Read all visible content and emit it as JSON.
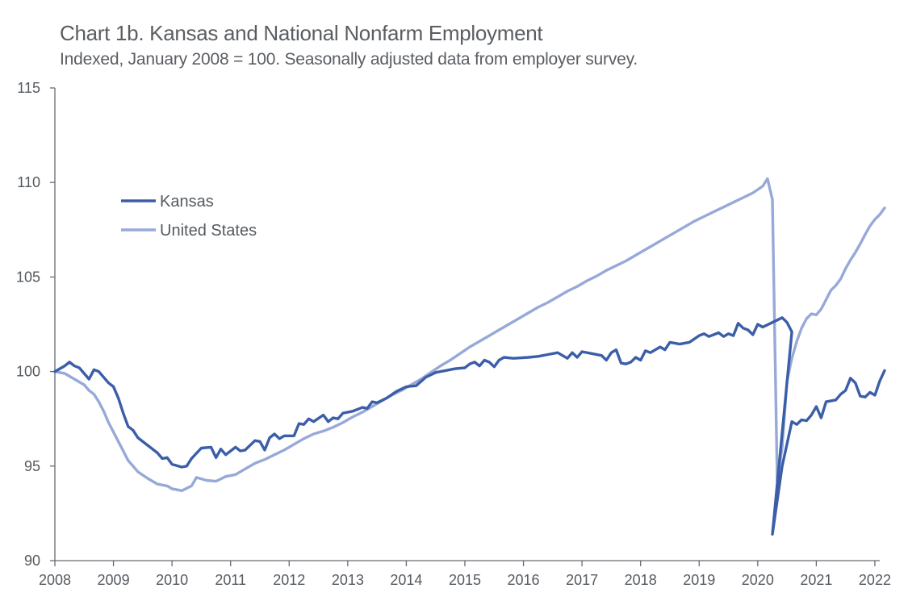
{
  "title": "Chart 1b. Kansas and National Nonfarm Employment",
  "subtitle": "Indexed, January 2008 = 100. Seasonally adjusted data from employer survey.",
  "colors": {
    "kansas": "#3b5ea8",
    "united_states": "#97a9d8",
    "axis": "#666b72"
  },
  "chart_data": {
    "type": "line",
    "title": "Chart 1b. Kansas and National Nonfarm Employment",
    "subtitle": "Indexed, January 2008 = 100. Seasonally adjusted data from employer survey.",
    "xlabel": "",
    "ylabel": "",
    "ylim": [
      90,
      115
    ],
    "yticks": [
      90,
      95,
      100,
      105,
      110,
      115
    ],
    "xticks": [
      "2008",
      "2009",
      "2010",
      "2011",
      "2012",
      "2013",
      "2014",
      "2015",
      "2016",
      "2017",
      "2018",
      "2019",
      "2020",
      "2021",
      "2022"
    ],
    "xlim": [
      "2008-01",
      "2022-02"
    ],
    "grid": false,
    "legend_position": "upper-left",
    "series": [
      {
        "name": "Kansas",
        "color": "#3b5ea8",
        "points": [
          [
            "2008-01",
            100.0
          ],
          [
            "2008-03",
            100.3
          ],
          [
            "2008-04",
            100.5
          ],
          [
            "2008-05",
            100.3
          ],
          [
            "2008-06",
            100.2
          ],
          [
            "2008-08",
            99.6
          ],
          [
            "2008-09",
            100.1
          ],
          [
            "2008-10",
            100.0
          ],
          [
            "2008-12",
            99.4
          ],
          [
            "2009-01",
            99.2
          ],
          [
            "2009-02",
            98.6
          ],
          [
            "2009-03",
            97.8
          ],
          [
            "2009-04",
            97.1
          ],
          [
            "2009-05",
            96.9
          ],
          [
            "2009-06",
            96.5
          ],
          [
            "2009-08",
            96.1
          ],
          [
            "2009-10",
            95.7
          ],
          [
            "2009-11",
            95.4
          ],
          [
            "2009-12",
            95.45
          ],
          [
            "2010-01",
            95.1
          ],
          [
            "2010-03",
            94.95
          ],
          [
            "2010-04",
            95.0
          ],
          [
            "2010-05",
            95.4
          ],
          [
            "2010-07",
            95.95
          ],
          [
            "2010-09",
            96.0
          ],
          [
            "2010-10",
            95.45
          ],
          [
            "2010-11",
            95.9
          ],
          [
            "2010-12",
            95.6
          ],
          [
            "2011-02",
            96.0
          ],
          [
            "2011-03",
            95.8
          ],
          [
            "2011-04",
            95.85
          ],
          [
            "2011-06",
            96.35
          ],
          [
            "2011-07",
            96.3
          ],
          [
            "2011-08",
            95.85
          ],
          [
            "2011-09",
            96.5
          ],
          [
            "2011-10",
            96.7
          ],
          [
            "2011-11",
            96.45
          ],
          [
            "2011-12",
            96.6
          ],
          [
            "2012-02",
            96.6
          ],
          [
            "2012-03",
            97.25
          ],
          [
            "2012-04",
            97.2
          ],
          [
            "2012-05",
            97.5
          ],
          [
            "2012-06",
            97.35
          ],
          [
            "2012-08",
            97.7
          ],
          [
            "2012-09",
            97.35
          ],
          [
            "2012-10",
            97.55
          ],
          [
            "2012-11",
            97.5
          ],
          [
            "2012-12",
            97.8
          ],
          [
            "2013-02",
            97.9
          ],
          [
            "2013-04",
            98.1
          ],
          [
            "2013-05",
            98.05
          ],
          [
            "2013-06",
            98.4
          ],
          [
            "2013-07",
            98.35
          ],
          [
            "2013-09",
            98.6
          ],
          [
            "2013-11",
            98.95
          ],
          [
            "2014-01",
            99.2
          ],
          [
            "2014-03",
            99.25
          ],
          [
            "2014-05",
            99.7
          ],
          [
            "2014-07",
            99.95
          ],
          [
            "2014-08",
            100.0
          ],
          [
            "2014-09",
            100.05
          ],
          [
            "2014-11",
            100.15
          ],
          [
            "2015-01",
            100.2
          ],
          [
            "2015-02",
            100.4
          ],
          [
            "2015-03",
            100.5
          ],
          [
            "2015-04",
            100.3
          ],
          [
            "2015-05",
            100.6
          ],
          [
            "2015-06",
            100.5
          ],
          [
            "2015-07",
            100.25
          ],
          [
            "2015-08",
            100.6
          ],
          [
            "2015-09",
            100.75
          ],
          [
            "2015-11",
            100.7
          ],
          [
            "2016-02",
            100.75
          ],
          [
            "2016-04",
            100.8
          ],
          [
            "2016-06",
            100.9
          ],
          [
            "2016-08",
            101.0
          ],
          [
            "2016-09",
            100.85
          ],
          [
            "2016-10",
            100.7
          ],
          [
            "2016-11",
            101.0
          ],
          [
            "2016-12",
            100.75
          ],
          [
            "2017-01",
            101.05
          ],
          [
            "2017-03",
            100.95
          ],
          [
            "2017-05",
            100.85
          ],
          [
            "2017-06",
            100.6
          ],
          [
            "2017-07",
            101.0
          ],
          [
            "2017-08",
            101.15
          ],
          [
            "2017-09",
            100.45
          ],
          [
            "2017-10",
            100.4
          ],
          [
            "2017-11",
            100.5
          ],
          [
            "2017-12",
            100.75
          ],
          [
            "2018-01",
            100.6
          ],
          [
            "2018-02",
            101.1
          ],
          [
            "2018-03",
            101.0
          ],
          [
            "2018-05",
            101.3
          ],
          [
            "2018-06",
            101.15
          ],
          [
            "2018-07",
            101.55
          ],
          [
            "2018-09",
            101.45
          ],
          [
            "2018-11",
            101.55
          ],
          [
            "2019-01",
            101.9
          ],
          [
            "2019-02",
            102.0
          ],
          [
            "2019-03",
            101.85
          ],
          [
            "2019-05",
            102.05
          ],
          [
            "2019-06",
            101.85
          ],
          [
            "2019-07",
            102.0
          ],
          [
            "2019-08",
            101.9
          ],
          [
            "2019-09",
            102.55
          ],
          [
            "2019-10",
            102.3
          ],
          [
            "2019-11",
            102.2
          ],
          [
            "2019-12",
            101.95
          ],
          [
            "2020-01",
            102.5
          ],
          [
            "2020-02",
            102.35
          ],
          [
            "2020-04",
            102.6
          ],
          [
            "2020-06",
            102.85
          ],
          [
            "2020-07",
            102.6
          ],
          [
            "2020-08",
            102.1
          ],
          [
            "2020-04",
            91.4
          ],
          [
            "2020-06",
            95.0
          ],
          [
            "2020-08",
            97.35
          ],
          [
            "2020-09",
            97.2
          ],
          [
            "2020-10",
            97.45
          ],
          [
            "2020-11",
            97.4
          ],
          [
            "2020-12",
            97.7
          ],
          [
            "2021-01",
            98.15
          ],
          [
            "2021-02",
            97.55
          ],
          [
            "2021-03",
            98.4
          ],
          [
            "2021-05",
            98.5
          ],
          [
            "2021-06",
            98.8
          ],
          [
            "2021-07",
            99.0
          ],
          [
            "2021-08",
            99.65
          ],
          [
            "2021-09",
            99.4
          ],
          [
            "2021-10",
            98.7
          ],
          [
            "2021-11",
            98.65
          ],
          [
            "2021-12",
            98.9
          ],
          [
            "2022-01",
            98.75
          ],
          [
            "2022-02",
            99.5
          ],
          [
            "2022-03",
            100.05
          ]
        ]
      },
      {
        "name": "United States",
        "color": "#97a9d8",
        "points": [
          [
            "2008-01",
            100.0
          ],
          [
            "2008-03",
            99.9
          ],
          [
            "2008-05",
            99.6
          ],
          [
            "2008-07",
            99.3
          ],
          [
            "2008-08",
            99.0
          ],
          [
            "2008-09",
            98.8
          ],
          [
            "2008-10",
            98.4
          ],
          [
            "2008-11",
            97.9
          ],
          [
            "2008-12",
            97.3
          ],
          [
            "2009-01",
            96.8
          ],
          [
            "2009-02",
            96.3
          ],
          [
            "2009-03",
            95.8
          ],
          [
            "2009-04",
            95.3
          ],
          [
            "2009-05",
            95.0
          ],
          [
            "2009-06",
            94.7
          ],
          [
            "2009-08",
            94.35
          ],
          [
            "2009-10",
            94.05
          ],
          [
            "2009-12",
            93.95
          ],
          [
            "2010-01",
            93.8
          ],
          [
            "2010-02",
            93.75
          ],
          [
            "2010-03",
            93.7
          ],
          [
            "2010-05",
            93.95
          ],
          [
            "2010-06",
            94.4
          ],
          [
            "2010-08",
            94.25
          ],
          [
            "2010-10",
            94.2
          ],
          [
            "2010-12",
            94.45
          ],
          [
            "2011-02",
            94.55
          ],
          [
            "2011-04",
            94.85
          ],
          [
            "2011-06",
            95.15
          ],
          [
            "2011-08",
            95.35
          ],
          [
            "2011-10",
            95.6
          ],
          [
            "2011-12",
            95.85
          ],
          [
            "2012-02",
            96.15
          ],
          [
            "2012-04",
            96.45
          ],
          [
            "2012-06",
            96.7
          ],
          [
            "2012-08",
            96.85
          ],
          [
            "2012-10",
            97.05
          ],
          [
            "2012-12",
            97.3
          ],
          [
            "2013-02",
            97.6
          ],
          [
            "2013-04",
            97.85
          ],
          [
            "2013-06",
            98.15
          ],
          [
            "2013-08",
            98.45
          ],
          [
            "2013-10",
            98.75
          ],
          [
            "2013-12",
            99.0
          ],
          [
            "2014-02",
            99.3
          ],
          [
            "2014-04",
            99.6
          ],
          [
            "2014-06",
            99.95
          ],
          [
            "2014-08",
            100.3
          ],
          [
            "2014-10",
            100.6
          ],
          [
            "2014-12",
            100.95
          ],
          [
            "2015-02",
            101.3
          ],
          [
            "2015-04",
            101.6
          ],
          [
            "2015-06",
            101.9
          ],
          [
            "2015-08",
            102.2
          ],
          [
            "2015-10",
            102.5
          ],
          [
            "2015-12",
            102.8
          ],
          [
            "2016-02",
            103.1
          ],
          [
            "2016-04",
            103.4
          ],
          [
            "2016-06",
            103.65
          ],
          [
            "2016-08",
            103.95
          ],
          [
            "2016-10",
            104.25
          ],
          [
            "2016-12",
            104.5
          ],
          [
            "2017-02",
            104.8
          ],
          [
            "2017-04",
            105.05
          ],
          [
            "2017-06",
            105.35
          ],
          [
            "2017-08",
            105.6
          ],
          [
            "2017-10",
            105.85
          ],
          [
            "2017-12",
            106.15
          ],
          [
            "2018-02",
            106.45
          ],
          [
            "2018-04",
            106.75
          ],
          [
            "2018-06",
            107.05
          ],
          [
            "2018-08",
            107.35
          ],
          [
            "2018-10",
            107.65
          ],
          [
            "2018-12",
            107.95
          ],
          [
            "2019-02",
            108.2
          ],
          [
            "2019-04",
            108.45
          ],
          [
            "2019-06",
            108.7
          ],
          [
            "2019-08",
            108.95
          ],
          [
            "2019-10",
            109.2
          ],
          [
            "2019-12",
            109.45
          ],
          [
            "2020-02",
            109.8
          ],
          [
            "2020-03",
            110.2
          ],
          [
            "2020-04",
            109.1
          ],
          [
            "2020-05",
            94.2
          ],
          [
            "2020-06",
            96.0
          ],
          [
            "2020-07",
            99.5
          ],
          [
            "2020-08",
            100.7
          ],
          [
            "2020-09",
            101.6
          ],
          [
            "2020-10",
            102.3
          ],
          [
            "2020-11",
            102.8
          ],
          [
            "2020-12",
            103.05
          ],
          [
            "2021-01",
            103.0
          ],
          [
            "2021-02",
            103.3
          ],
          [
            "2021-03",
            103.8
          ],
          [
            "2021-04",
            104.3
          ],
          [
            "2021-05",
            104.55
          ],
          [
            "2021-06",
            104.9
          ],
          [
            "2021-07",
            105.45
          ],
          [
            "2021-08",
            105.9
          ],
          [
            "2021-09",
            106.3
          ],
          [
            "2021-10",
            106.75
          ],
          [
            "2021-11",
            107.25
          ],
          [
            "2021-12",
            107.7
          ],
          [
            "2022-01",
            108.05
          ],
          [
            "2022-02",
            108.3
          ],
          [
            "2022-03",
            108.65
          ]
        ]
      }
    ]
  }
}
